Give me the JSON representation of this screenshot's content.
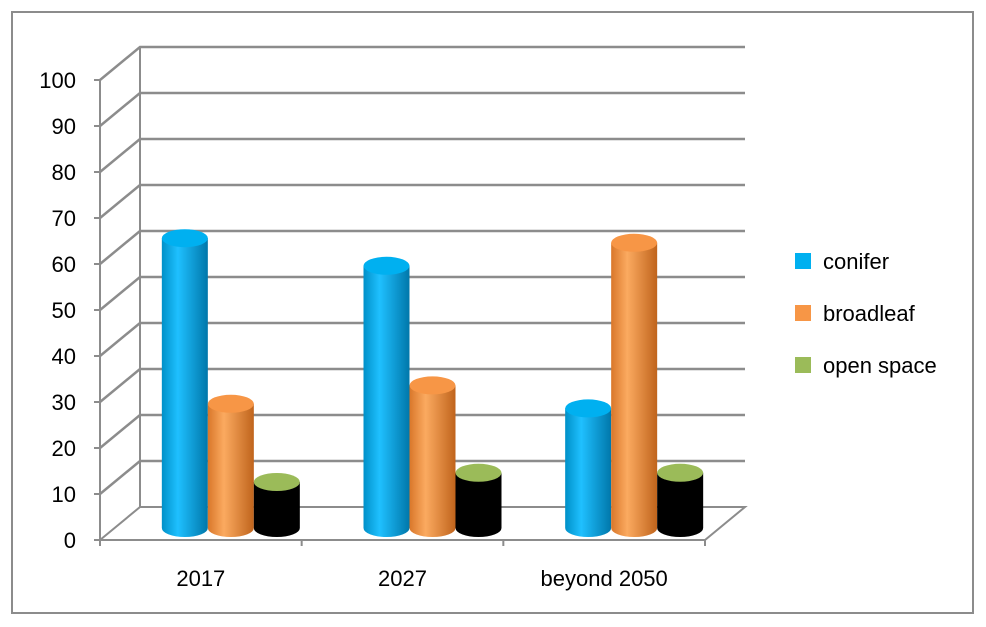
{
  "chart_data": {
    "type": "bar",
    "style": "3d-cylinder",
    "categories": [
      "2017",
      "2027",
      "beyond 2050"
    ],
    "series": [
      {
        "name": "conifer",
        "values": [
          63,
          57,
          26
        ],
        "color": "#00b0f0"
      },
      {
        "name": "broadleaf",
        "values": [
          27,
          31,
          62
        ],
        "color": "#f79646"
      },
      {
        "name": "open space",
        "values": [
          10,
          12,
          12
        ],
        "color": "#9bbb59"
      }
    ],
    "ylim": [
      0,
      100
    ],
    "yticks": [
      "0",
      "10",
      "20",
      "30",
      "40",
      "50",
      "60",
      "70",
      "80",
      "90",
      "100"
    ],
    "xlabel": "",
    "ylabel": "",
    "title": "",
    "grid": true,
    "legend_position": "right"
  }
}
